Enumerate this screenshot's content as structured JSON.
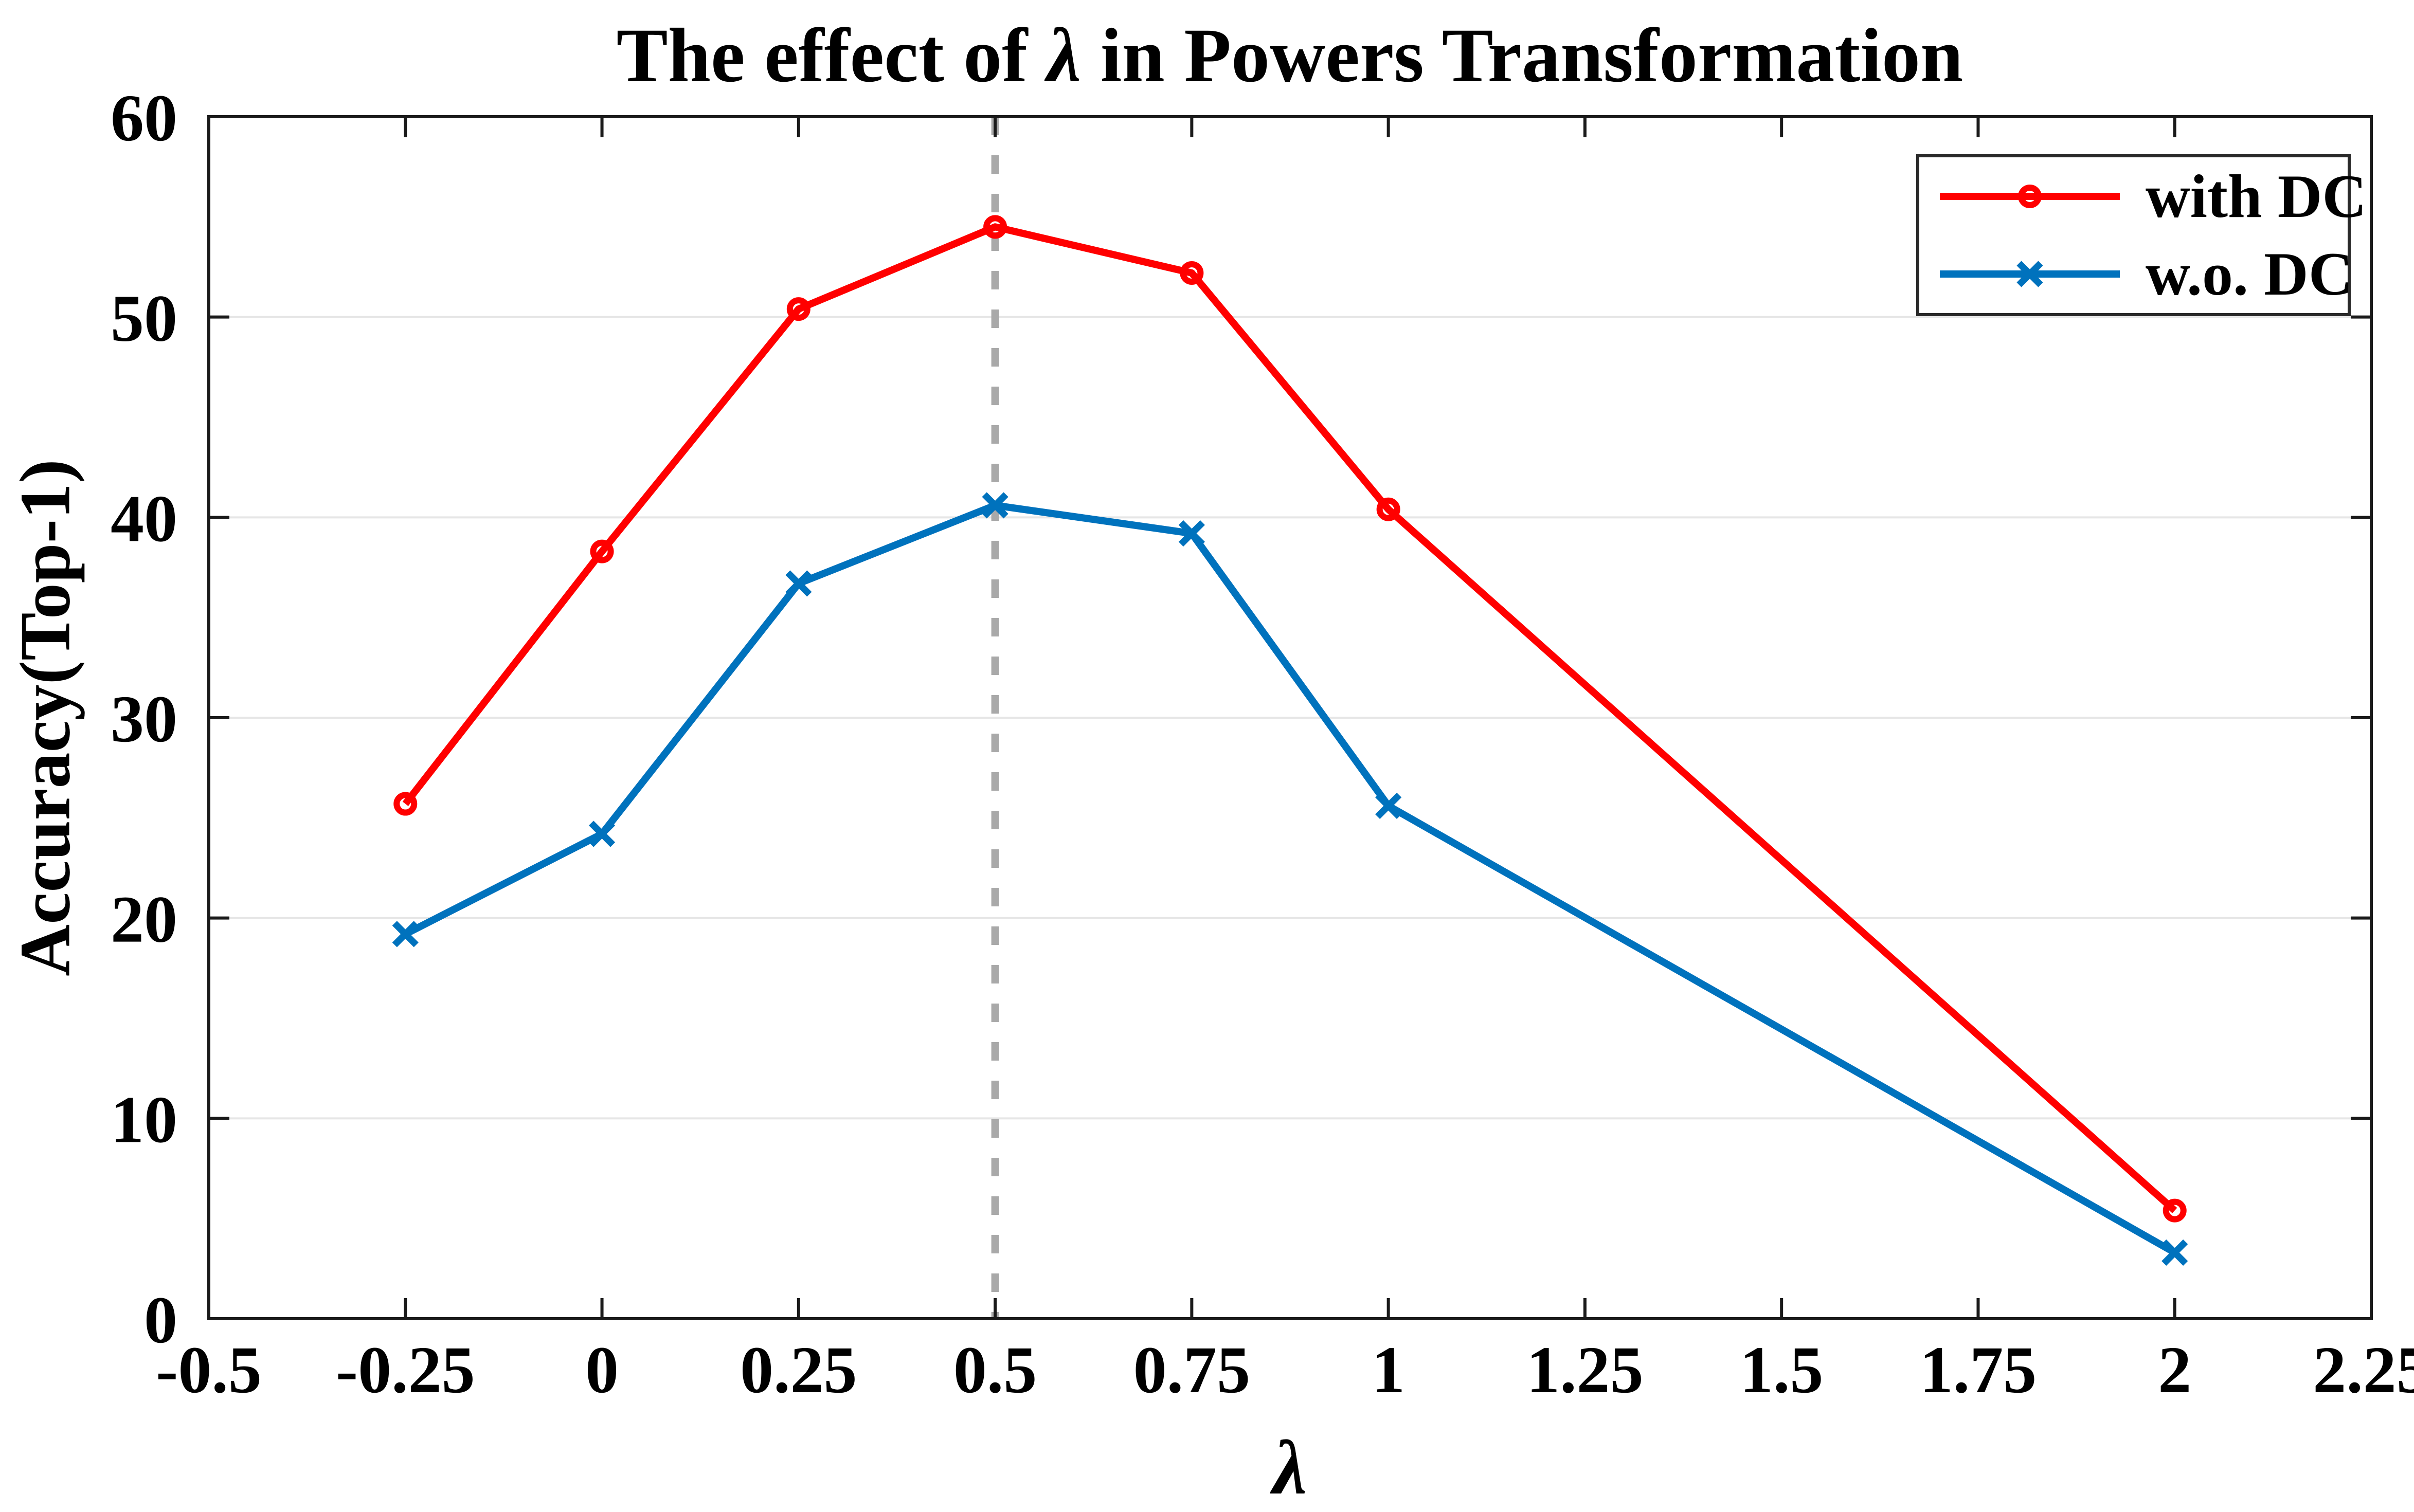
{
  "figure": {
    "title_prefix": "The effect of ",
    "title_lambda": "λ",
    "title_suffix": " in Powers Transformation"
  },
  "chart_data": {
    "type": "line",
    "title": "The effect of λ in Powers Transformation",
    "xlabel": "λ",
    "ylabel": "Accuracy(Top-1)",
    "xlim": [
      -0.5,
      2.25
    ],
    "ylim": [
      0,
      60
    ],
    "xticks": [
      -0.5,
      -0.25,
      0,
      0.25,
      0.5,
      0.75,
      1,
      1.25,
      1.5,
      1.75,
      2,
      2.25
    ],
    "xtick_labels": [
      "-0.5",
      "-0.25",
      "0",
      "0.25",
      "0.5",
      "0.75",
      "1",
      "1.25",
      "1.5",
      "1.75",
      "2",
      "2.25"
    ],
    "yticks": [
      0,
      10,
      20,
      30,
      40,
      50,
      60
    ],
    "ytick_labels": [
      "0",
      "10",
      "20",
      "30",
      "40",
      "50",
      "60"
    ],
    "grid": "horizontal",
    "x": [
      -0.25,
      0,
      0.25,
      0.5,
      0.75,
      1,
      2
    ],
    "series": [
      {
        "name": "with DC",
        "color": "#ff0000",
        "marker": "circle",
        "values": [
          25.7,
          38.3,
          50.4,
          54.5,
          52.2,
          40.4,
          5.4
        ]
      },
      {
        "name": "w.o. DC",
        "color": "#0072bd",
        "marker": "x",
        "values": [
          19.2,
          24.2,
          36.7,
          40.6,
          39.2,
          25.6,
          3.3
        ]
      }
    ],
    "vline": {
      "x": 0.5,
      "style": "dashed",
      "color": "#a9a9a9"
    },
    "legend": {
      "position": "top-right"
    },
    "colors": {
      "grid": "#e6e6e6",
      "axis": "#1a1a1a",
      "background": "#ffffff"
    }
  }
}
